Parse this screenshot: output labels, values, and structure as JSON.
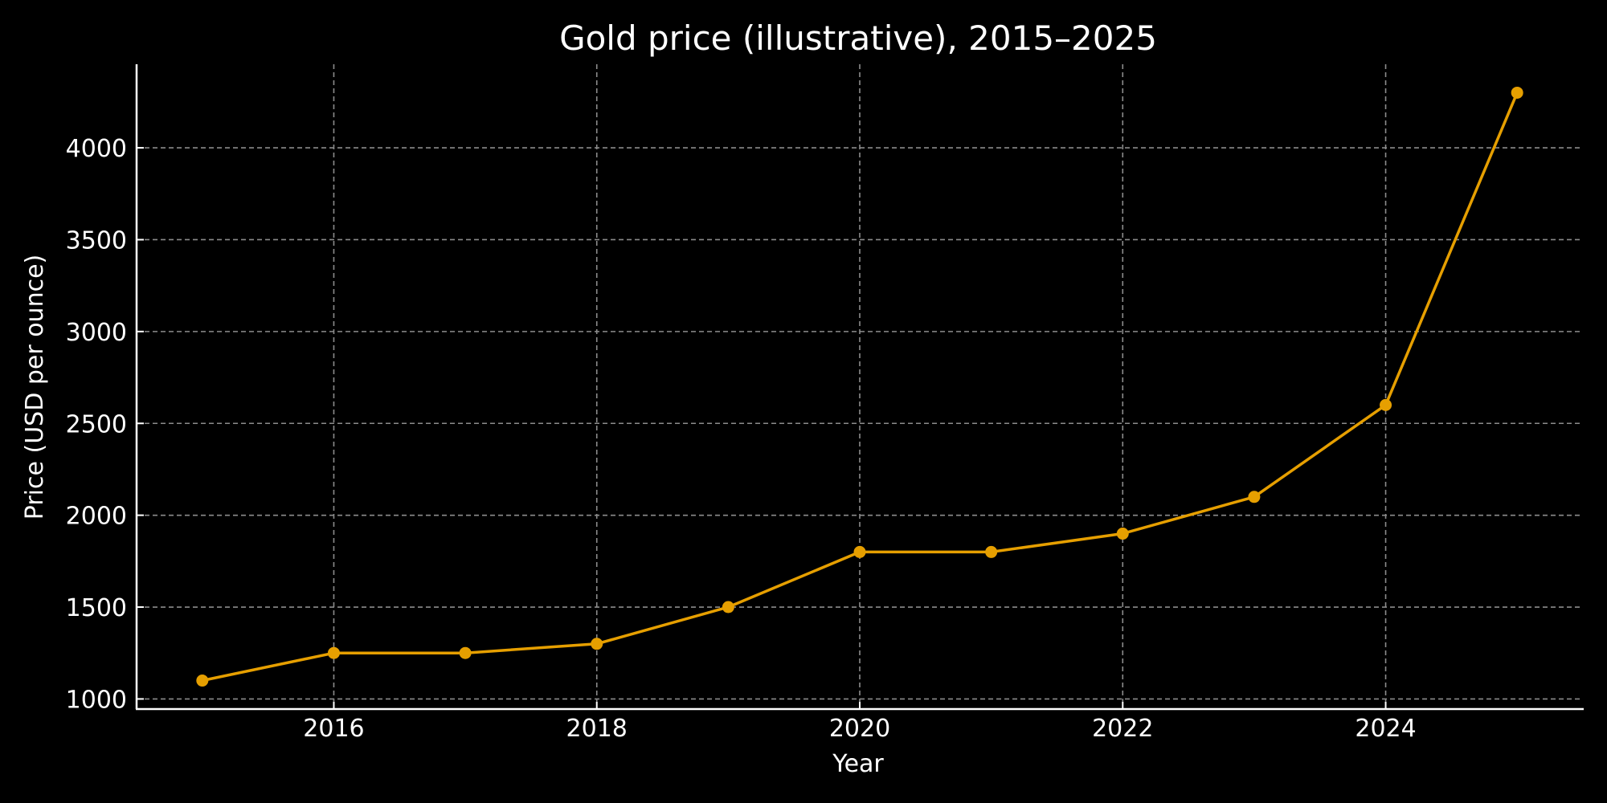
{
  "chart_data": {
    "type": "line",
    "title": "Gold price (illustrative), 2015–2025",
    "xlabel": "Year",
    "ylabel": "Price (USD per ounce)",
    "x": [
      2015,
      2016,
      2017,
      2018,
      2019,
      2020,
      2021,
      2022,
      2023,
      2024,
      2025
    ],
    "series": [
      {
        "name": "Gold price",
        "color": "#E69F00",
        "marker": "circle",
        "values": [
          1100,
          1250,
          1250,
          1300,
          1500,
          1800,
          1800,
          1900,
          2100,
          2600,
          4300
        ]
      }
    ],
    "xlim": [
      2014.5,
      2025.5
    ],
    "ylim": [
      945,
      4455
    ],
    "xticks": [
      2016,
      2018,
      2020,
      2022,
      2024
    ],
    "xtick_labels": [
      "2016",
      "2018",
      "2020",
      "2022",
      "2024"
    ],
    "yticks": [
      1000,
      1500,
      2000,
      2500,
      3000,
      3500,
      4000
    ],
    "ytick_labels": [
      "1000",
      "1500",
      "2000",
      "2500",
      "3000",
      "3500",
      "4000"
    ],
    "grid": true,
    "grid_style": "dashed",
    "legend": null,
    "background": "#000000",
    "foreground": "#ffffff"
  }
}
